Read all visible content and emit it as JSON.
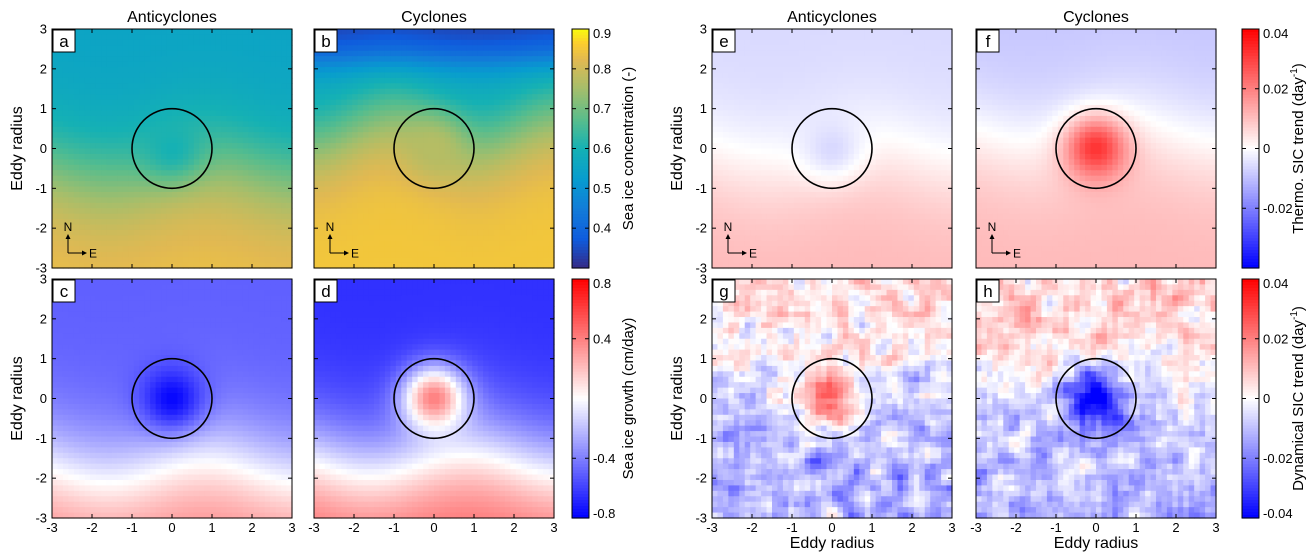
{
  "chart_data": [
    {
      "type": "heatmap",
      "panel_label": "a",
      "title": "Anticyclones",
      "xlabel": "",
      "ylabel": "Eddy radius",
      "xlim": [
        -3,
        3
      ],
      "ylim": [
        -3,
        3
      ],
      "eddy_circle_radius": 1,
      "compass": [
        "N",
        "E"
      ],
      "field": "sic",
      "values": {
        "north": 0.55,
        "south": 0.84,
        "center": 0.6,
        "center_mode": "set",
        "boundary_y": -0.5
      }
    },
    {
      "type": "heatmap",
      "panel_label": "b",
      "title": "Cyclones",
      "xlabel": "",
      "ylabel": "",
      "xlim": [
        -3,
        3
      ],
      "ylim": [
        -3,
        3
      ],
      "eddy_circle_radius": 1,
      "compass": [
        "N",
        "E"
      ],
      "field": "sic",
      "values": {
        "north": 0.33,
        "mid": 0.55,
        "south": 0.85,
        "center": 0.77,
        "center_mode": "set",
        "boundary_y": 0.5
      }
    },
    {
      "type": "heatmap",
      "panel_label": "c",
      "title": "",
      "xlabel": "",
      "ylabel": "Eddy radius",
      "xlim": [
        -3,
        3
      ],
      "ylim": [
        -3,
        3
      ],
      "eddy_circle_radius": 1,
      "field": "growth",
      "values": {
        "north": -0.5,
        "south": 0.4,
        "center": -0.78,
        "center_mode": "set",
        "boundary_y": -1.7
      }
    },
    {
      "type": "heatmap",
      "panel_label": "d",
      "title": "",
      "xlabel": "",
      "ylabel": "",
      "xlim": [
        -3,
        3
      ],
      "ylim": [
        -3,
        3
      ],
      "eddy_circle_radius": 1,
      "field": "growth",
      "values": {
        "north": -0.65,
        "south": 0.5,
        "center": 0.4,
        "center_mode": "set",
        "boundary_y": -1.5
      }
    },
    {
      "type": "heatmap",
      "panel_label": "e",
      "title": "Anticyclones",
      "xlabel": "",
      "ylabel": "Eddy radius",
      "xlim": [
        -3,
        3
      ],
      "ylim": [
        -3,
        3
      ],
      "eddy_circle_radius": 1,
      "compass": [
        "N",
        "E"
      ],
      "field": "thermo",
      "values": {
        "north": -0.006,
        "south": 0.011,
        "center": -0.006,
        "center_mode": "set",
        "boundary_y": -0.3
      }
    },
    {
      "type": "heatmap",
      "panel_label": "f",
      "title": "Cyclones",
      "xlabel": "",
      "ylabel": "",
      "xlim": [
        -3,
        3
      ],
      "ylim": [
        -3,
        3
      ],
      "eddy_circle_radius": 1,
      "compass": [
        "N",
        "E"
      ],
      "field": "thermo",
      "values": {
        "north": -0.009,
        "south": 0.011,
        "center": 0.032,
        "center_mode": "set",
        "boundary_y": 0.3
      }
    },
    {
      "type": "heatmap",
      "panel_label": "g",
      "title": "",
      "xlabel": "Eddy radius",
      "ylabel": "Eddy radius",
      "xlim": [
        -3,
        3
      ],
      "ylim": [
        -3,
        3
      ],
      "eddy_circle_radius": 1,
      "field": "dynamic",
      "values": {
        "north": 0.006,
        "south": -0.012,
        "center": 0.025,
        "center_mode": "add",
        "boundary_y": 0.6,
        "noise": 0.014
      }
    },
    {
      "type": "heatmap",
      "panel_label": "h",
      "title": "",
      "xlabel": "Eddy radius",
      "ylabel": "",
      "xlim": [
        -3,
        3
      ],
      "ylim": [
        -3,
        3
      ],
      "eddy_circle_radius": 1,
      "field": "dynamic",
      "values": {
        "north": 0.008,
        "south": -0.011,
        "center": -0.04,
        "center_mode": "set",
        "boundary_y": 0.6,
        "noise": 0.013
      }
    }
  ],
  "x_ticks": [
    "-3",
    "-2",
    "-1",
    "0",
    "1",
    "2",
    "3"
  ],
  "y_ticks": [
    "-3",
    "-2",
    "-1",
    "0",
    "1",
    "2",
    "3"
  ],
  "colorbars": [
    {
      "id": "sic",
      "label": "Sea ice concentration (-)",
      "range": [
        0.3,
        0.9
      ],
      "colormap": "parula",
      "ticks": [
        "0.9",
        "0.8",
        "0.7",
        "0.6",
        "0.5",
        "0.4"
      ],
      "tick_values": [
        0.9,
        0.8,
        0.7,
        0.6,
        0.5,
        0.4
      ]
    },
    {
      "id": "growth",
      "label": "Sea ice growth (cm/day)",
      "range": [
        -0.8,
        0.8
      ],
      "colormap": "blue-white-red",
      "ticks": [
        "0.8",
        "0.4",
        "-0.4",
        "-0.8"
      ],
      "tick_values": [
        0.8,
        0.4,
        -0.4,
        -0.8
      ]
    },
    {
      "id": "thermo",
      "label": "Thermo. SIC trend (day",
      "label_sup": "-1",
      "label_end": ")",
      "range": [
        -0.04,
        0.04
      ],
      "colormap": "blue-white-red",
      "ticks": [
        "0.04",
        "0.02",
        "0",
        "-0.02"
      ],
      "tick_values": [
        0.04,
        0.02,
        0,
        -0.02
      ]
    },
    {
      "id": "dynamic",
      "label": "Dynamical SIC trend (day",
      "label_sup": "-1",
      "label_end": ")",
      "range": [
        -0.04,
        0.04
      ],
      "colormap": "blue-white-red",
      "ticks": [
        "0.04",
        "0.02",
        "0",
        "-0.02",
        "-0.04"
      ],
      "tick_values": [
        0.04,
        0.02,
        0,
        -0.02,
        -0.04
      ]
    }
  ]
}
